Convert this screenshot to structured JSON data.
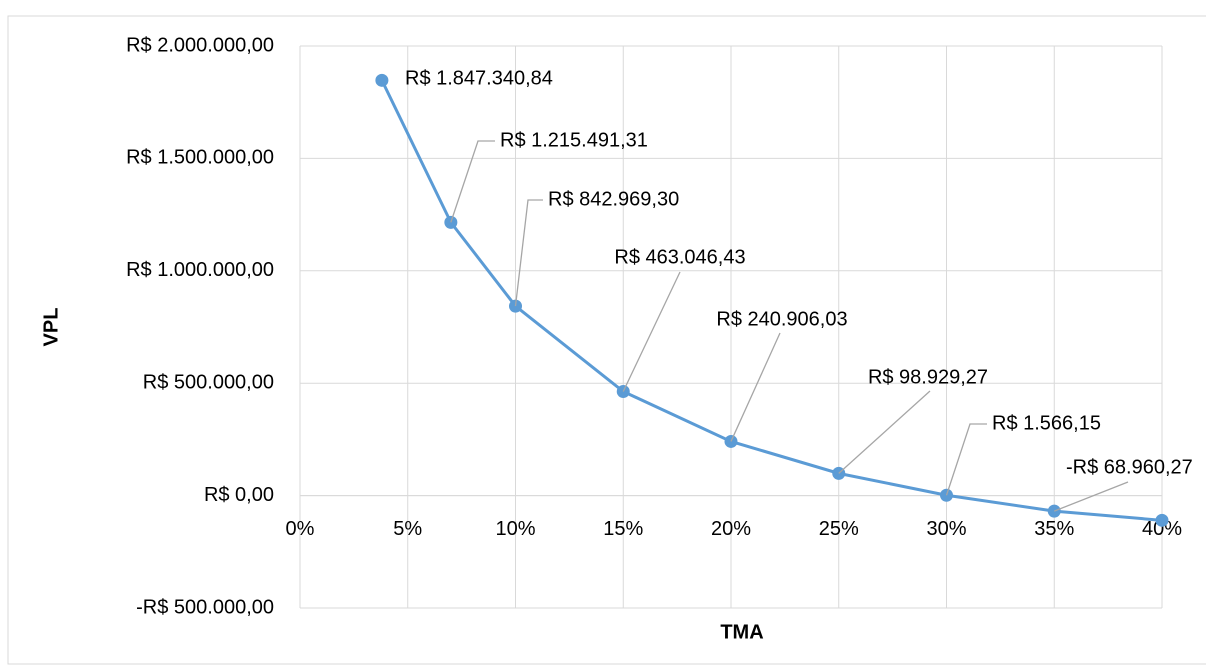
{
  "chart_data": {
    "type": "line",
    "x_label": "TMA",
    "y_label": "VPL",
    "x": [
      3.8,
      7,
      10,
      15,
      20,
      25,
      30,
      35,
      40
    ],
    "series": [
      {
        "color": "#5b9bd5",
        "values": [
          1847340.84,
          1215491.31,
          842969.3,
          463046.43,
          240906.03,
          98929.27,
          1566.15,
          -68960.27,
          -110000
        ],
        "value_labels": [
          "R$ 1.847.340,84",
          "R$ 1.215.491,31",
          "R$ 842.969,30",
          "R$ 463.046,43",
          "R$ 240.906,03",
          "R$ 98.929,27",
          "R$ 1.566,15",
          "-R$ 68.960,27",
          null
        ]
      }
    ],
    "negative_label_color": "#ff0000",
    "xlim": [
      0,
      40
    ],
    "xticks": [
      {
        "value": 0,
        "label": "0%"
      },
      {
        "value": 5,
        "label": "5%"
      },
      {
        "value": 10,
        "label": "10%"
      },
      {
        "value": 15,
        "label": "15%"
      },
      {
        "value": 20,
        "label": "20%"
      },
      {
        "value": 25,
        "label": "25%"
      },
      {
        "value": 30,
        "label": "30%"
      },
      {
        "value": 35,
        "label": "35%"
      },
      {
        "value": 40,
        "label": "40%"
      }
    ],
    "ylim": [
      -500000,
      2000000
    ],
    "yticks": [
      {
        "value": -500000,
        "label": "-R$ 500.000,00"
      },
      {
        "value": 0,
        "label": "R$ 0,00"
      },
      {
        "value": 500000,
        "label": "R$ 500.000,00"
      },
      {
        "value": 1000000,
        "label": "R$ 1.000.000,00"
      },
      {
        "value": 1500000,
        "label": "R$ 1.500.000,00"
      },
      {
        "value": 2000000,
        "label": "R$ 2.000.000,00"
      }
    ],
    "grid": true
  }
}
